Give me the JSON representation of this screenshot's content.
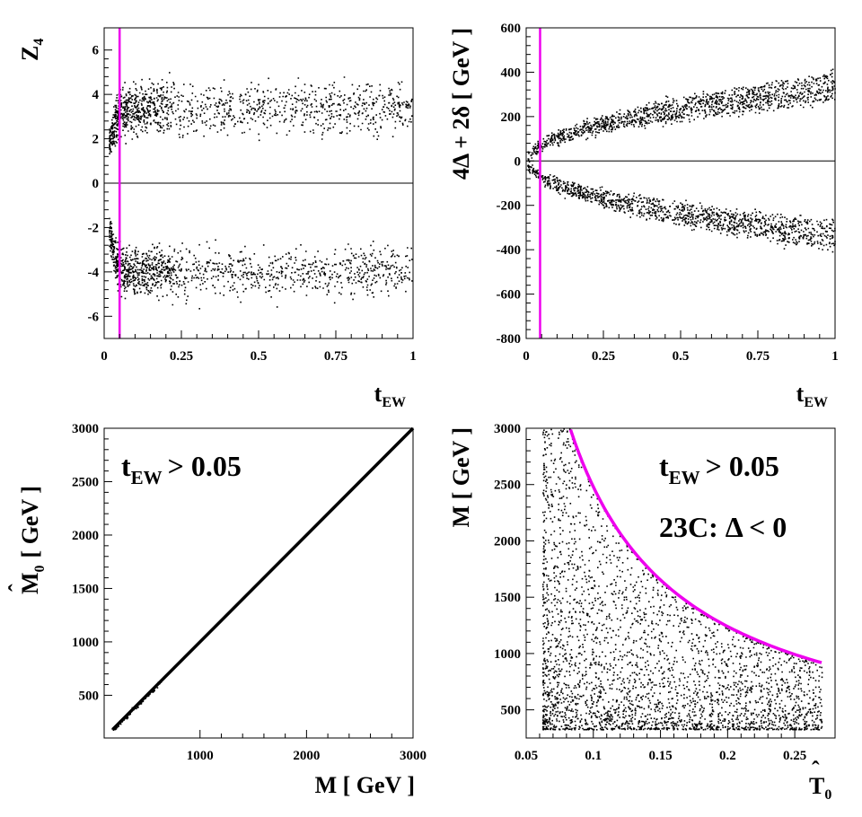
{
  "colors": {
    "ink": "#000000",
    "accent": "#ee00ee",
    "background": "#ffffff"
  },
  "chart_data": [
    {
      "id": "a",
      "type": "scatter",
      "xlim": [
        0,
        1
      ],
      "ylim": [
        -7,
        7
      ],
      "xticks": [
        0,
        0.25,
        0.5,
        0.75,
        1
      ],
      "xtick_labels": [
        "0",
        "0.25",
        "0.5",
        "0.75",
        "1"
      ],
      "yticks": [
        -6,
        -4,
        -2,
        0,
        2,
        4,
        6
      ],
      "ytick_labels": [
        "-6",
        "-4",
        "-2",
        "0",
        "2",
        "4",
        "6"
      ],
      "xlabel": {
        "main": "t",
        "sub": "EW"
      },
      "ylabel": {
        "main": "Z",
        "sub": "4"
      },
      "reference_lines": [
        {
          "axis": "y",
          "value": 0,
          "color": "#000000"
        },
        {
          "axis": "x",
          "value": 0.05,
          "color": "#ee00ee"
        }
      ],
      "point_cloud": {
        "model": "two bands symmetric about 0, |Z4| typically 2-6, dense for t_EW < 0.2",
        "n_points": 2600
      }
    },
    {
      "id": "b",
      "type": "scatter",
      "xlim": [
        0,
        1
      ],
      "ylim": [
        -800,
        600
      ],
      "xticks": [
        0,
        0.25,
        0.5,
        0.75,
        1
      ],
      "xtick_labels": [
        "0",
        "0.25",
        "0.5",
        "0.75",
        "1"
      ],
      "yticks": [
        -800,
        -600,
        -400,
        -200,
        0,
        200,
        400,
        600
      ],
      "ytick_labels": [
        "-800",
        "-600",
        "-400",
        "-200",
        "0",
        "200",
        "400",
        "600"
      ],
      "xlabel": {
        "main": "t",
        "sub": "EW"
      },
      "ylabel": {
        "text": "4Δ + 2δ [ GeV ]"
      },
      "reference_lines": [
        {
          "axis": "y",
          "value": 0,
          "color": "#000000"
        },
        {
          "axis": "x",
          "value": 0.045,
          "color": "#ee00ee"
        }
      ],
      "point_cloud": {
        "model": "parabolic envelope ±380*sqrt(t_EW) GeV with inward scatter",
        "n_points": 2600
      }
    },
    {
      "id": "c",
      "type": "scatter",
      "xlim": [
        100,
        3000
      ],
      "ylim": [
        100,
        3000
      ],
      "xticks": [
        1000,
        2000,
        3000
      ],
      "xtick_labels": [
        "1000",
        "2000",
        "3000"
      ],
      "yticks": [
        500,
        1000,
        1500,
        2000,
        2500,
        3000
      ],
      "ytick_labels": [
        "500",
        "1000",
        "1500",
        "2000",
        "2500",
        "3000"
      ],
      "xlabel": {
        "text": "M [ GeV ]"
      },
      "ylabel": {
        "text": "M̂0 [ GeV ]",
        "hat_symbol": "ˆ",
        "main": "M",
        "sub": "0",
        "units": "[ GeV ]"
      },
      "annotation": {
        "main": "t",
        "sub": "EW",
        "rest": "> 0.05"
      },
      "series": [
        {
          "name": "M0 vs M",
          "x": [
            180,
            3000
          ],
          "y": [
            180,
            3000
          ]
        }
      ]
    },
    {
      "id": "d",
      "type": "scatter",
      "xlim": [
        0.05,
        0.28
      ],
      "ylim": [
        250,
        3000
      ],
      "xticks": [
        0.05,
        0.1,
        0.15,
        0.2,
        0.25
      ],
      "xtick_labels": [
        "0.05",
        "0.1",
        "0.15",
        "0.2",
        "0.25"
      ],
      "yticks": [
        500,
        1000,
        1500,
        2000,
        2500,
        3000
      ],
      "ytick_labels": [
        "500",
        "1000",
        "1500",
        "2000",
        "2500",
        "3000"
      ],
      "xlabel": {
        "hat_symbol": "ˆ",
        "main": "T",
        "sub": "0"
      },
      "ylabel": {
        "text": "M [ GeV ]"
      },
      "annotations": [
        {
          "main": "t",
          "sub": "EW",
          "rest": "> 0.05"
        },
        {
          "text": "23C: Δ < 0"
        }
      ],
      "bound_curve": {
        "color": "#ee00ee",
        "x_range": [
          0.083,
          0.27
        ],
        "formula": "M = 248 / T0",
        "description": "upper bound of allowed region"
      },
      "point_cloud": {
        "model": "points below bound, T0 from 0.062 to 0.27, M from 300 to bound",
        "n_points": 3000
      }
    }
  ]
}
